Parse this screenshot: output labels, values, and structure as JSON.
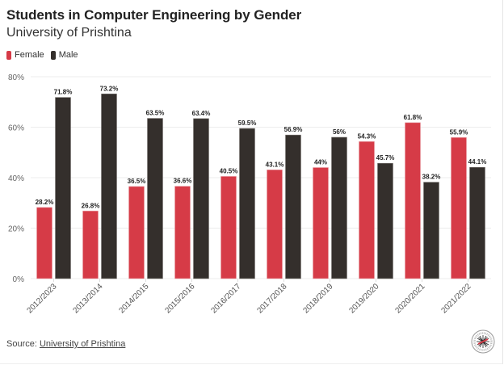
{
  "chart_data": {
    "type": "bar",
    "title": "Students in Computer Engineering by Gender",
    "subtitle": "University of Prishtina",
    "xlabel": "",
    "ylabel": "",
    "ylim": [
      0,
      80
    ],
    "y_ticks": [
      0,
      20,
      40,
      60,
      80
    ],
    "y_tick_labels": [
      "0%",
      "20%",
      "40%",
      "60%",
      "80%"
    ],
    "grid": true,
    "legend_position": "top-left",
    "categories": [
      "2012/2023",
      "2013/2014",
      "2014/2015",
      "2015/2016",
      "2016/2017",
      "2017/2018",
      "2018/2019",
      "2019/2020",
      "2020/2021",
      "2021/2022"
    ],
    "series": [
      {
        "name": "Female",
        "color": "#d63b47",
        "values": [
          28.2,
          26.8,
          36.5,
          36.6,
          40.5,
          43.1,
          44,
          54.3,
          61.8,
          55.9
        ],
        "labels": [
          "28.2%",
          "26.8%",
          "36.5%",
          "36.6%",
          "40.5%",
          "43.1%",
          "44%",
          "54.3%",
          "61.8%",
          "55.9%"
        ]
      },
      {
        "name": "Male",
        "color": "#342f2c",
        "values": [
          71.8,
          73.2,
          63.5,
          63.4,
          59.5,
          56.9,
          56,
          45.7,
          38.2,
          44.1
        ],
        "labels": [
          "71.8%",
          "73.2%",
          "63.5%",
          "63.4%",
          "59.5%",
          "56.9%",
          "56%",
          "45.7%",
          "38.2%",
          "44.1%"
        ]
      }
    ]
  },
  "source": {
    "prefix": "Source: ",
    "link_text": "University of Prishtina"
  },
  "logo": {
    "icon": "university-seal-icon"
  }
}
